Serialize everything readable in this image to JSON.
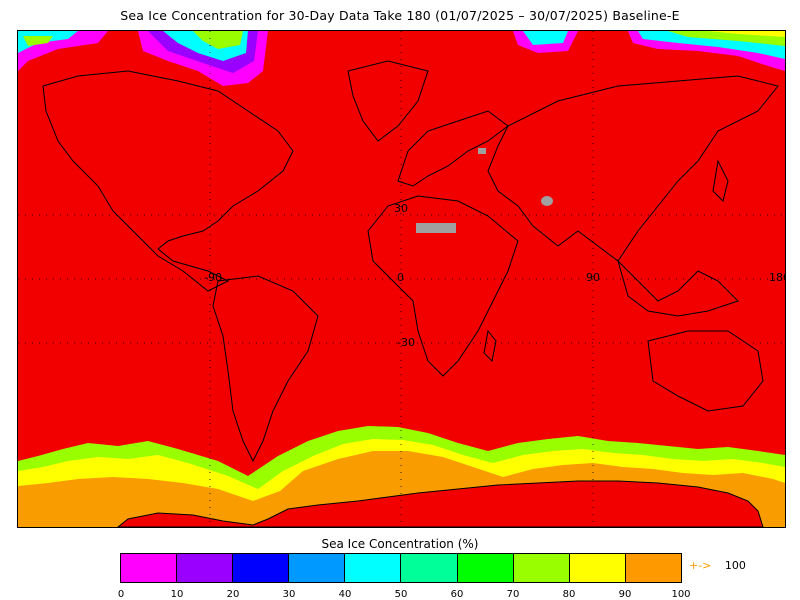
{
  "title": "Sea Ice Concentration for 30-Day Data Take 180 (01/07/2025 – 30/07/2025) Baseline-E",
  "map": {
    "lat_labels": [
      "30",
      "-30"
    ],
    "lon_labels": [
      "-90",
      "0",
      "90",
      "180"
    ],
    "colors": {
      "ocean": "#f20000",
      "coast": "#000000",
      "grid": "#000000",
      "missing": "#a0a0a0",
      "ice_high": "#f89c00",
      "ice_mid": "#f8f800",
      "ice_low": "#99f800"
    }
  },
  "colorbar": {
    "title": "Sea Ice Concentration (%)",
    "ticks": [
      "0",
      "10",
      "20",
      "30",
      "40",
      "50",
      "60",
      "70",
      "80",
      "90",
      "100"
    ],
    "colors": [
      "#ff00ff",
      "#9900ff",
      "#0000ff",
      "#0099ff",
      "#00ffff",
      "#00ff99",
      "#00ff00",
      "#99ff00",
      "#ffff00",
      "#ff9900"
    ],
    "overflow_arrow": "+->",
    "overflow_value": "100"
  }
}
